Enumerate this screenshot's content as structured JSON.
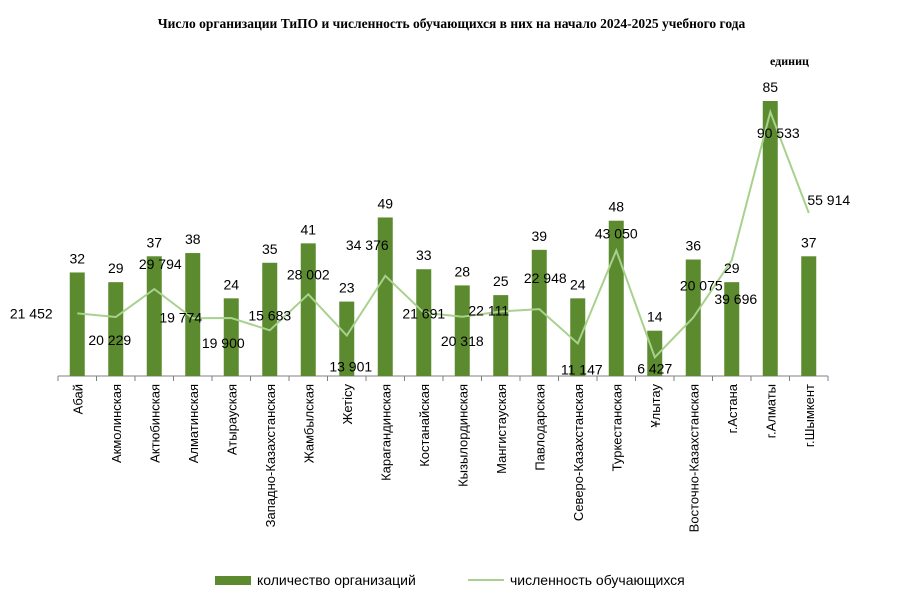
{
  "title": "Число организации ТиПО и численность обучающихся в них на начало 2024-2025 учебного года",
  "unit_label": "единиц",
  "legend": {
    "bars": "количество организаций",
    "line": "численность обучающихся"
  },
  "colors": {
    "bar": "#5b8a2f",
    "line": "#a9d18e"
  },
  "chart_data": {
    "type": "bar+line",
    "categories": [
      "Абай",
      "Акмолинская",
      "Актюбинская",
      "Алматинская",
      "Атырауская",
      "Западно-Казахстанская",
      "Жамбылская",
      "Жетісу",
      "Карагандинская",
      "Костанайская",
      "Кызылординская",
      "Мангистауская",
      "Павлодарская",
      "Северо-Казахстанская",
      "Туркестанская",
      "Ұлытау",
      "Восточно-Казахстанская",
      "г.Астана",
      "г.Алматы",
      "г.Шымкент"
    ],
    "series": [
      {
        "name": "количество организаций",
        "type": "bar",
        "values": [
          32,
          29,
          37,
          38,
          24,
          35,
          41,
          23,
          49,
          33,
          28,
          25,
          39,
          24,
          48,
          14,
          36,
          29,
          85,
          37
        ],
        "labels": [
          "32",
          "29",
          "37",
          "38",
          "24",
          "35",
          "41",
          "23",
          "49",
          "33",
          "28",
          "25",
          "39",
          "24",
          "48",
          "14",
          "36",
          "29",
          "85",
          "37"
        ]
      },
      {
        "name": "численность обучающихся",
        "type": "line",
        "values": [
          21452,
          20229,
          29794,
          19774,
          19900,
          15683,
          28002,
          13901,
          34376,
          21691,
          20318,
          22111,
          22948,
          11147,
          43050,
          6427,
          20075,
          39696,
          90533,
          55914
        ],
        "labels": [
          "21 452",
          "20 229",
          "29 794",
          "19 774",
          "19 900",
          "15 683",
          "28 002",
          "13 901",
          "34 376",
          "21 691",
          "20 318",
          "22 111",
          "22 948",
          "11 147",
          "43 050",
          "6 427",
          "20 075",
          "39 696",
          "90 533",
          "55 914"
        ]
      }
    ],
    "bar_ylim": [
      0,
      85
    ],
    "line_ylim": [
      0,
      90533
    ],
    "grid": false,
    "legend_position": "bottom"
  }
}
